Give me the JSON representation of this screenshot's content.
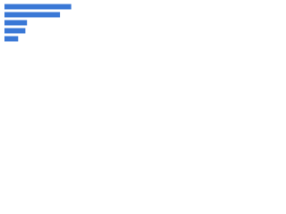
{
  "chart_data": {
    "type": "hbar",
    "categories": [
      null,
      null,
      null,
      null,
      null
    ],
    "values": [
      83,
      69,
      28,
      26,
      17
    ],
    "color": "#3a78d6",
    "xlim": [
      0,
      100
    ]
  }
}
